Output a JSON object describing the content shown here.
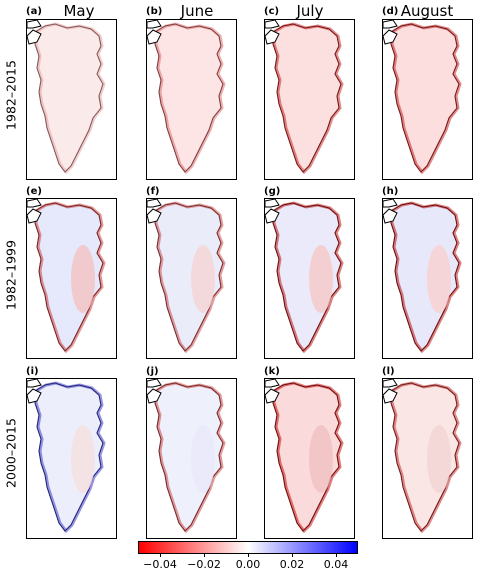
{
  "figure": {
    "columns": [
      "May",
      "June",
      "July",
      "August"
    ],
    "rows": [
      "1982–2015",
      "1982–1999",
      "2000–2015"
    ],
    "panel_labels": [
      "(a)",
      "(b)",
      "(c)",
      "(d)",
      "(e)",
      "(f)",
      "(g)",
      "(h)",
      "(i)",
      "(j)",
      "(k)",
      "(l)"
    ],
    "colorbar": {
      "ticks": [
        "−0.04",
        "−0.02",
        "0.00",
        "0.02",
        "0.04"
      ],
      "range": [
        -0.05,
        0.05
      ],
      "colors": {
        "low": "#ff0000",
        "mid": "#ffffff",
        "high": "#0000ff"
      }
    },
    "map_colors": {
      "outline": "#000000",
      "ocean": "#ffffff",
      "land_neutral": "#fbe9ea"
    }
  }
}
